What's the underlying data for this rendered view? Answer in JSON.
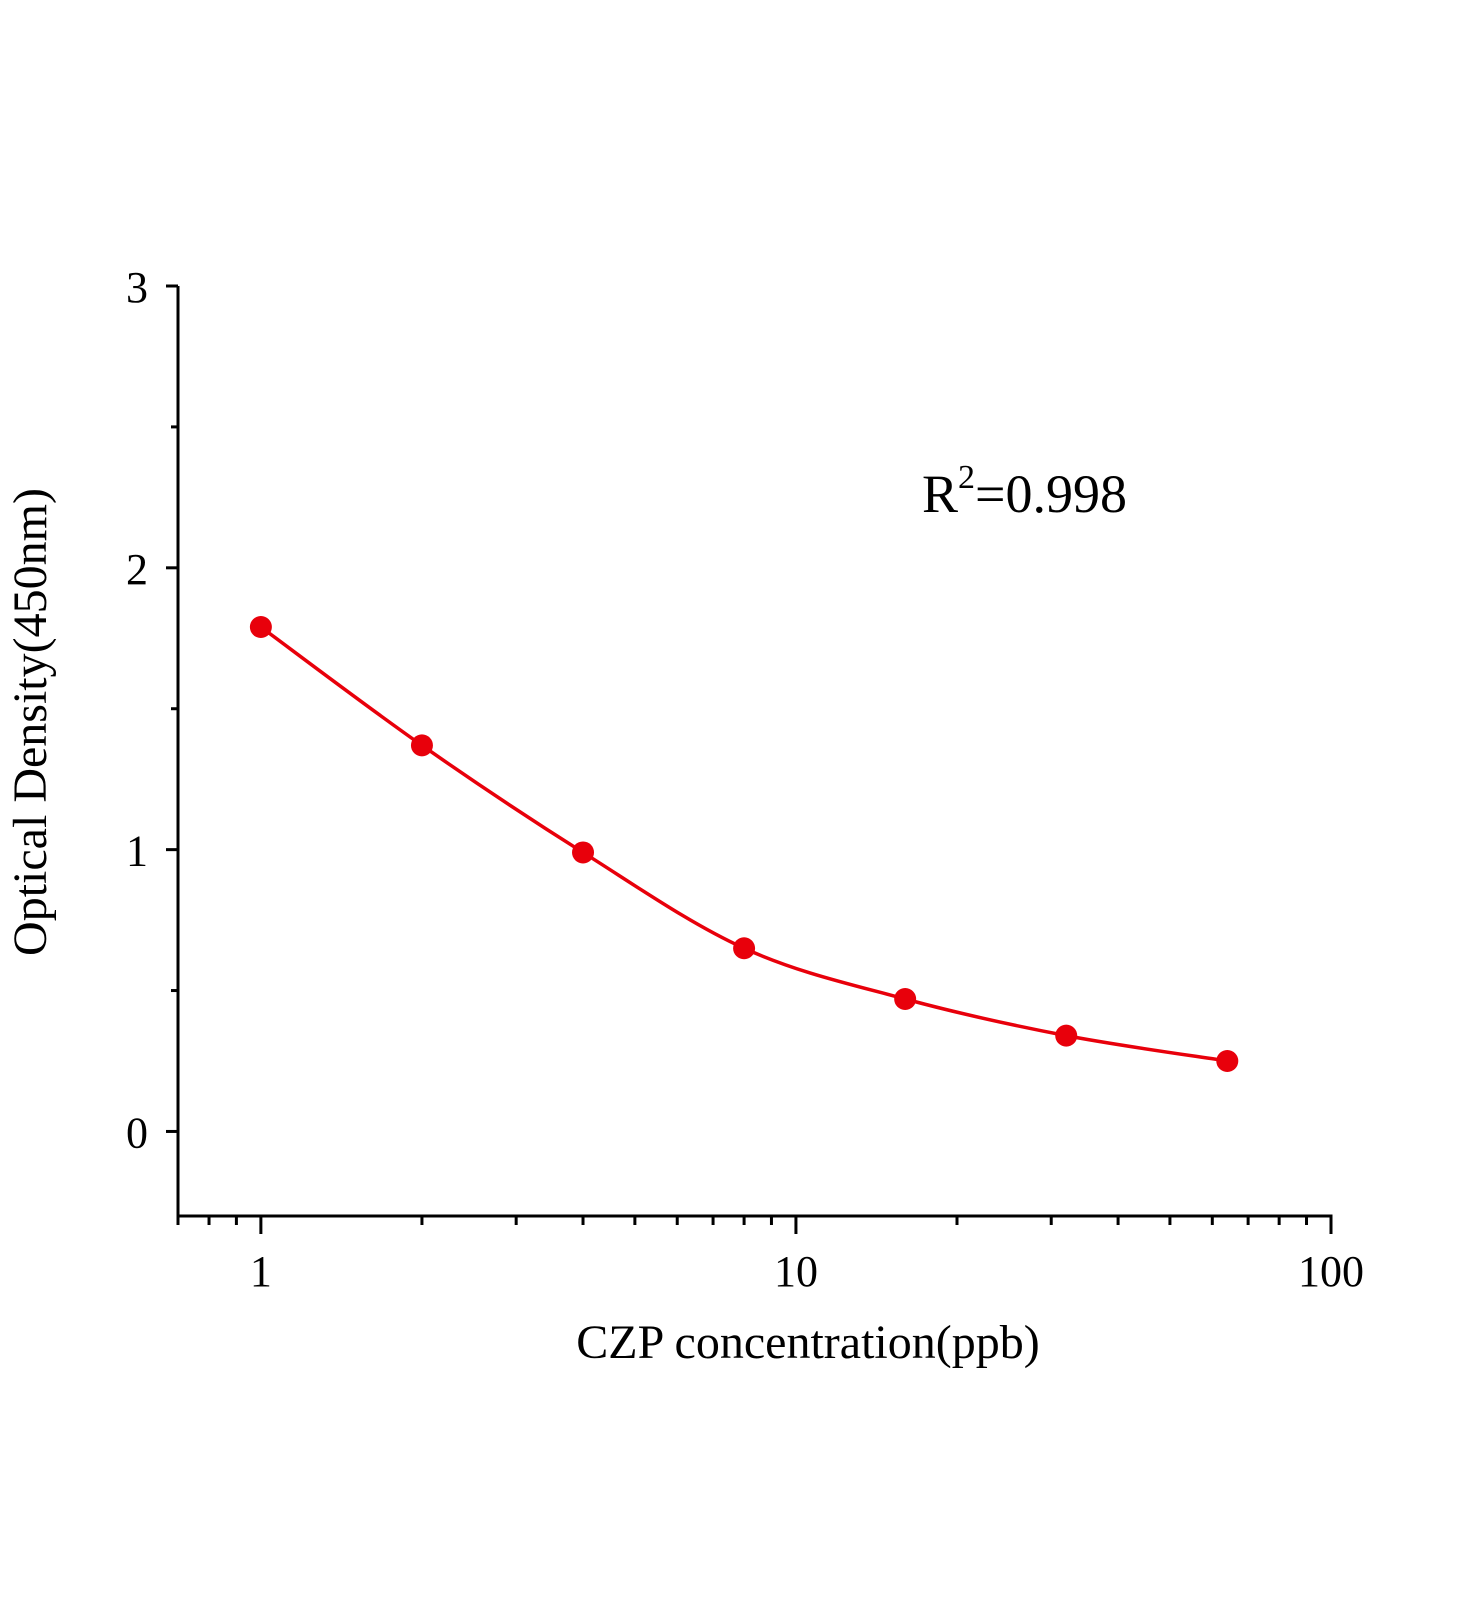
{
  "chart_data": {
    "type": "scatter",
    "title": "",
    "xlabel": "CZP concentration(ppb)",
    "ylabel": "Optical Density(450nm)",
    "x_scale": "log",
    "xlim": [
      0.7,
      100
    ],
    "ylim": [
      -0.3,
      3
    ],
    "x_ticks": [
      1,
      10,
      100
    ],
    "x_tick_labels": [
      "1",
      "10",
      "100"
    ],
    "y_ticks": [
      0,
      1,
      2,
      3
    ],
    "y_tick_labels": [
      "0",
      "1",
      "2",
      "3"
    ],
    "grid": false,
    "series": [
      {
        "x": [
          1,
          2,
          4,
          8,
          16,
          32,
          64
        ],
        "y": [
          1.79,
          1.37,
          0.99,
          0.65,
          0.47,
          0.34,
          0.25
        ],
        "color": "#e8000b",
        "fit_curve": true
      }
    ],
    "annotation": {
      "base": "R",
      "superscript": "2",
      "text": "=0.998"
    }
  }
}
